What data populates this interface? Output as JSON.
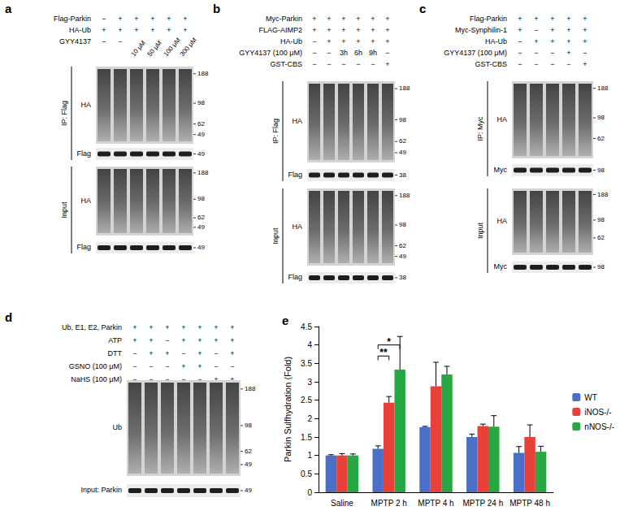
{
  "panels": [
    {
      "label": "a",
      "conditions": [
        {
          "name": "Flag-Parkin",
          "lanes": [
            "−",
            "+",
            "+",
            "+",
            "+",
            "+"
          ]
        },
        {
          "name": "HA-Ub",
          "lanes": [
            "+",
            "+",
            "+",
            "+",
            "+",
            "+"
          ]
        },
        {
          "name": "GYY4137",
          "lanes": [
            "−",
            "−",
            "10 μM",
            "50 μM",
            "100 μM",
            "300 μM"
          ]
        }
      ],
      "groups": [
        {
          "name": "IP: Flag",
          "blots": [
            {
              "name": "HA",
              "markers": [
                188,
                98,
                62,
                49
              ]
            },
            {
              "name": "Flag",
              "markers": [
                49
              ]
            }
          ]
        },
        {
          "name": "Input",
          "blots": [
            {
              "name": "HA",
              "markers": [
                188,
                98,
                62,
                49
              ]
            },
            {
              "name": "Flag",
              "markers": [
                49
              ]
            }
          ]
        }
      ]
    },
    {
      "label": "b",
      "conditions": [
        {
          "name": "Myc-Parkin",
          "lanes": [
            "+",
            "+",
            "+",
            "+",
            "+",
            "+"
          ]
        },
        {
          "name": "FLAG-AIMP2",
          "lanes": [
            "+",
            "+",
            "+",
            "+",
            "+",
            "+"
          ]
        },
        {
          "name": "HA-Ub",
          "lanes": [
            "−",
            "+",
            "+",
            "+",
            "+",
            "+"
          ]
        },
        {
          "name": "GYY4137 (100 μM)",
          "lanes": [
            "−",
            "−",
            "3h",
            "6h",
            "9h",
            "−"
          ]
        },
        {
          "name": "GST-CBS",
          "lanes": [
            "−",
            "−",
            "−",
            "−",
            "−",
            "+"
          ]
        }
      ],
      "groups": [
        {
          "name": "IP: Flag",
          "blots": [
            {
              "name": "HA",
              "markers": [
                188,
                98,
                62,
                49
              ]
            },
            {
              "name": "Flag",
              "markers": [
                38
              ]
            }
          ]
        },
        {
          "name": "Input",
          "blots": [
            {
              "name": "HA",
              "markers": [
                188,
                98,
                62,
                49
              ]
            },
            {
              "name": "Flag",
              "markers": [
                38
              ]
            }
          ]
        }
      ]
    },
    {
      "label": "c",
      "conditions": [
        {
          "name": "Flag-Parkin",
          "lanes": [
            "+",
            "+",
            "+",
            "+",
            "+"
          ]
        },
        {
          "name": "Myc-Synphilin-1",
          "lanes": [
            "+",
            "−",
            "+",
            "+",
            "+"
          ]
        },
        {
          "name": "HA-Ub",
          "lanes": [
            "−",
            "+",
            "+",
            "+",
            "+"
          ]
        },
        {
          "name": "GYY4137 (100 μM)",
          "lanes": [
            "−",
            "−",
            "−",
            "+",
            "−"
          ]
        },
        {
          "name": "GST-CBS",
          "lanes": [
            "−",
            "−",
            "−",
            "−",
            "+"
          ]
        }
      ],
      "groups": [
        {
          "name": "IP: Myc",
          "blots": [
            {
              "name": "HA",
              "markers": [
                188,
                98,
                62
              ]
            },
            {
              "name": "Myc",
              "markers": [
                98
              ]
            }
          ]
        },
        {
          "name": "Input",
          "blots": [
            {
              "name": "HA",
              "markers": [
                188,
                98,
                62
              ]
            },
            {
              "name": "Myc",
              "markers": [
                98
              ]
            }
          ]
        }
      ]
    },
    {
      "label": "d",
      "conditions": [
        {
          "name": "Ub, E1, E2, Parkin",
          "lanes": [
            "+",
            "+",
            "+",
            "+",
            "+",
            "+",
            "+"
          ]
        },
        {
          "name": "ATP",
          "lanes": [
            "+",
            "+",
            "−",
            "+",
            "+",
            "+",
            "+"
          ]
        },
        {
          "name": "DTT",
          "lanes": [
            "−",
            "+",
            "+",
            "−",
            "+",
            "−",
            "+"
          ]
        },
        {
          "name": "GSNO (100 μM)",
          "lanes": [
            "−",
            "−",
            "−",
            "+",
            "+",
            "−",
            "−"
          ]
        },
        {
          "name": "NaHS (100 μM)",
          "lanes": [
            "−",
            "−",
            "−",
            "−",
            "−",
            "+",
            "+"
          ]
        }
      ],
      "groups": [
        {
          "blots": [
            {
              "name": "Ub",
              "markers": [
                188,
                98,
                62,
                49
              ]
            },
            {
              "name": "Input: Parkin",
              "markers": [
                49
              ]
            }
          ]
        }
      ]
    }
  ],
  "chart_data": {
    "type": "bar",
    "title": "e",
    "categories": [
      "Saline",
      "MPTP 2 h",
      "MPTP 4 h",
      "MPTP 24 h",
      "MPTP 48 h"
    ],
    "series": [
      {
        "name": "WT",
        "color": "#4a6fc8",
        "values": [
          1.0,
          1.18,
          1.77,
          1.5,
          1.07
        ],
        "errors": [
          0.02,
          0.08,
          0.02,
          0.08,
          0.17
        ]
      },
      {
        "name": "iNOS-/-",
        "color": "#e8413a",
        "values": [
          1.0,
          2.43,
          2.88,
          1.8,
          1.5
        ],
        "errors": [
          0.05,
          0.17,
          0.65,
          0.05,
          0.33
        ]
      },
      {
        "name": "nNOS-/-",
        "color": "#27a844",
        "values": [
          1.0,
          3.33,
          3.2,
          1.78,
          1.1
        ],
        "errors": [
          0.04,
          0.9,
          0.22,
          0.3,
          0.15
        ]
      }
    ],
    "ylim": [
      0,
      4.5
    ],
    "yticks": [
      0,
      0.5,
      1,
      1.5,
      2,
      2.5,
      3,
      3.5,
      4,
      4.5
    ],
    "y_label": "Parkin Sulfhydration (Fold)",
    "grid": false,
    "legend": "right",
    "annotations": [
      {
        "text": "**",
        "category": "MPTP 2 h",
        "from": "WT",
        "to": "iNOS-/-",
        "y": 3.7
      },
      {
        "text": "*",
        "category": "MPTP 2 h",
        "from": "WT",
        "to": "nNOS-/-",
        "y": 4.0
      }
    ]
  }
}
